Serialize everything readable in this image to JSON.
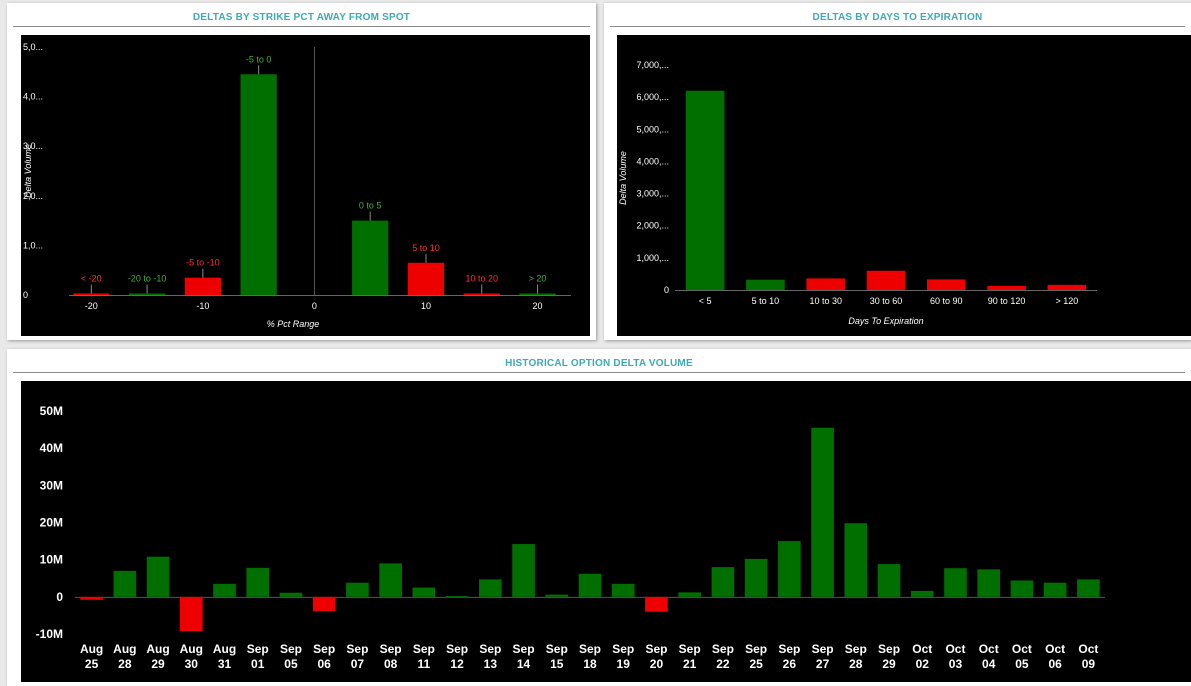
{
  "colors": {
    "positive": "#006f00",
    "negative": "#ee0000",
    "axis_text": "#ffffff",
    "title": "#3fa9b4",
    "plot_bg": "#000000"
  },
  "panels": {
    "strike": {
      "title": "DELTAS BY STRIKE PCT AWAY FROM SPOT"
    },
    "days": {
      "title": "DELTAS BY DAYS TO EXPIRATION"
    },
    "history": {
      "title": "HISTORICAL OPTION DELTA VOLUME"
    }
  },
  "chart_data": [
    {
      "type": "bar",
      "title": "DELTAS BY STRIKE PCT AWAY FROM SPOT",
      "xlabel": "% Pct Range",
      "ylabel": "Delta Volume",
      "xlim": [
        -22,
        23
      ],
      "ylim": [
        0,
        5000
      ],
      "xticks": [
        -20,
        -10,
        0,
        10,
        20
      ],
      "yticks": [
        {
          "v": 0,
          "label": "0"
        },
        {
          "v": 1000,
          "label": "1,0..."
        },
        {
          "v": 2000,
          "label": "2,0..."
        },
        {
          "v": 3000,
          "label": "3,0..."
        },
        {
          "v": 4000,
          "label": "4,0..."
        },
        {
          "v": 5000,
          "label": "5,0..."
        }
      ],
      "bars": [
        {
          "label": "< -20",
          "x": -20,
          "value": 30,
          "sign": "neg"
        },
        {
          "label": "-20 to -10",
          "x": -15,
          "value": 30,
          "sign": "pos"
        },
        {
          "label": "-5 to -10",
          "x": -10,
          "value": 350,
          "sign": "neg"
        },
        {
          "label": "-5 to 0",
          "x": -5,
          "value": 4450,
          "sign": "pos"
        },
        {
          "label": "0 to 5",
          "x": 5,
          "value": 1500,
          "sign": "pos"
        },
        {
          "label": "5 to 10",
          "x": 10,
          "value": 650,
          "sign": "neg"
        },
        {
          "label": "10 to 20",
          "x": 15,
          "value": 20,
          "sign": "neg"
        },
        {
          "label": "> 20",
          "x": 20,
          "value": 10,
          "sign": "pos"
        }
      ]
    },
    {
      "type": "bar",
      "title": "DELTAS BY DAYS TO EXPIRATION",
      "xlabel": "Days To Expiration",
      "ylabel": "Delta Volume",
      "ylim": [
        0,
        7000
      ],
      "yticks": [
        {
          "v": 0,
          "label": "0"
        },
        {
          "v": 1000,
          "label": "1,000,..."
        },
        {
          "v": 2000,
          "label": "2,000,..."
        },
        {
          "v": 3000,
          "label": "3,000,..."
        },
        {
          "v": 4000,
          "label": "4,000,..."
        },
        {
          "v": 5000,
          "label": "5,000,..."
        },
        {
          "v": 6000,
          "label": "6,000,..."
        },
        {
          "v": 7000,
          "label": "7,000,..."
        }
      ],
      "categories": [
        "< 5",
        "5 to 10",
        "10 to 30",
        "30 to 60",
        "60 to 90",
        "90 to 120",
        "> 120"
      ],
      "values": [
        6200,
        320,
        360,
        600,
        330,
        130,
        160
      ],
      "signs": [
        "pos",
        "pos",
        "neg",
        "neg",
        "neg",
        "neg",
        "neg"
      ]
    },
    {
      "type": "bar",
      "title": "HISTORICAL OPTION DELTA VOLUME",
      "xlabel": "",
      "ylabel": "",
      "ylim": [
        -10,
        50
      ],
      "yticks": [
        {
          "v": 50,
          "label": "50M"
        },
        {
          "v": 40,
          "label": "40M"
        },
        {
          "v": 30,
          "label": "30M"
        },
        {
          "v": 20,
          "label": "20M"
        },
        {
          "v": 10,
          "label": "10M"
        },
        {
          "v": 0,
          "label": "0"
        },
        {
          "v": -10,
          "label": "-10M"
        }
      ],
      "categories": [
        [
          "Aug",
          "25"
        ],
        [
          "Aug",
          "28"
        ],
        [
          "Aug",
          "29"
        ],
        [
          "Aug",
          "30"
        ],
        [
          "Aug",
          "31"
        ],
        [
          "Sep",
          "01"
        ],
        [
          "Sep",
          "05"
        ],
        [
          "Sep",
          "06"
        ],
        [
          "Sep",
          "07"
        ],
        [
          "Sep",
          "08"
        ],
        [
          "Sep",
          "11"
        ],
        [
          "Sep",
          "12"
        ],
        [
          "Sep",
          "13"
        ],
        [
          "Sep",
          "14"
        ],
        [
          "Sep",
          "15"
        ],
        [
          "Sep",
          "18"
        ],
        [
          "Sep",
          "19"
        ],
        [
          "Sep",
          "20"
        ],
        [
          "Sep",
          "21"
        ],
        [
          "Sep",
          "22"
        ],
        [
          "Sep",
          "25"
        ],
        [
          "Sep",
          "26"
        ],
        [
          "Sep",
          "27"
        ],
        [
          "Sep",
          "28"
        ],
        [
          "Sep",
          "29"
        ],
        [
          "Oct",
          "02"
        ],
        [
          "Oct",
          "03"
        ],
        [
          "Oct",
          "04"
        ],
        [
          "Oct",
          "05"
        ],
        [
          "Oct",
          "06"
        ],
        [
          "Oct",
          "09"
        ]
      ],
      "values": [
        -0.8,
        7,
        10.8,
        -9.2,
        3.5,
        7.8,
        1.1,
        -3.8,
        3.8,
        9,
        2.5,
        0.2,
        4.7,
        14.2,
        0.6,
        6.2,
        3.5,
        -4,
        1.2,
        8,
        10.2,
        15,
        45.5,
        19.8,
        8.8,
        1.6,
        7.7,
        7.4,
        4.4,
        3.8,
        4.7
      ]
    }
  ]
}
